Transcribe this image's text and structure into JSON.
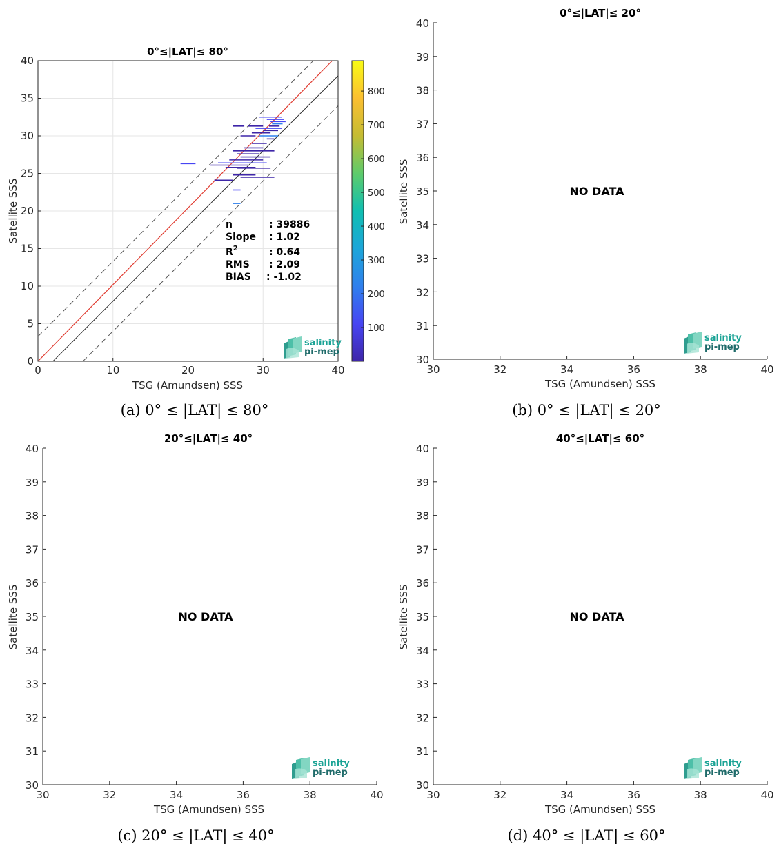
{
  "panels": [
    {
      "id": "a",
      "title": "0°≤|LAT|≤ 80°",
      "caption": "(a) 0° ≤ |LAT| ≤ 80°",
      "xlabel": "TSG (Amundsen) SSS",
      "ylabel": "Satellite SSS",
      "has_data": true
    },
    {
      "id": "b",
      "title": "0°≤|LAT|≤ 20°",
      "caption": "(b) 0° ≤ |LAT| ≤ 20°",
      "xlabel": "TSG (Amundsen) SSS",
      "ylabel": "Satellite SSS",
      "has_data": false,
      "message": "NO DATA"
    },
    {
      "id": "c",
      "title": "20°≤|LAT|≤ 40°",
      "caption": "(c) 20° ≤ |LAT| ≤ 40°",
      "xlabel": "TSG (Amundsen) SSS",
      "ylabel": "Satellite SSS",
      "has_data": false,
      "message": "NO DATA"
    },
    {
      "id": "d",
      "title": "40°≤|LAT|≤ 60°",
      "caption": "(d) 40° ≤ |LAT| ≤ 60°",
      "xlabel": "TSG (Amundsen) SSS",
      "ylabel": "Satellite SSS",
      "has_data": false,
      "message": "NO DATA"
    }
  ],
  "stats": {
    "n_label": "n",
    "n_value": ": 39886",
    "slope_label": "Slope",
    "slope_value": ": 1.02",
    "r2_label": "R",
    "r2_sup": "2",
    "r2_value": ": 0.64",
    "rms_label": "RMS",
    "rms_value": ": 2.09",
    "bias_label": "BIAS",
    "bias_value": ": -1.02"
  },
  "logo": {
    "line1": "salinity",
    "line2": "pi-mep"
  },
  "colors": {
    "identity_line": "#2b2b2b",
    "fit_line": "#e03c31",
    "dashed_bounds": "#555555",
    "grid": "#e6e6e6",
    "logo_teal": "#1aa395",
    "colormap": [
      "#3e26a8",
      "#4745f3",
      "#2f80ed",
      "#1ca6d9",
      "#10bfb1",
      "#5ecb6b",
      "#c5bc33",
      "#fbbf31",
      "#f9fb15"
    ]
  },
  "chart_data": [
    {
      "panel": "a",
      "type": "scatter",
      "title": "0°≤|LAT|≤ 80°",
      "xlabel": "TSG (Amundsen) SSS",
      "ylabel": "Satellite SSS",
      "xlim": [
        0,
        40
      ],
      "ylim": [
        0,
        40
      ],
      "xticks": [
        0,
        10,
        20,
        30,
        40
      ],
      "yticks": [
        0,
        5,
        10,
        15,
        20,
        25,
        30,
        35,
        40
      ],
      "grid": true,
      "reference_lines": {
        "identity": {
          "slope": 1,
          "intercept": 0
        },
        "fit": {
          "slope": 1.02,
          "intercept": 0.45
        },
        "bounds": {
          "offset": 3.3,
          "slope": 1
        }
      },
      "colorbar": {
        "ticks": [
          100,
          200,
          300,
          400,
          500,
          600,
          700,
          800
        ],
        "range": [
          0,
          890
        ]
      },
      "segments": [
        {
          "x1": 29.5,
          "x2": 32.5,
          "y": 32.5,
          "c": 200
        },
        {
          "x1": 30.5,
          "x2": 32.8,
          "y": 32.2,
          "c": 150
        },
        {
          "x1": 31.0,
          "x2": 33.0,
          "y": 31.9,
          "c": 120
        },
        {
          "x1": 31.2,
          "x2": 32.6,
          "y": 31.6,
          "c": 300
        },
        {
          "x1": 30.8,
          "x2": 32.2,
          "y": 31.3,
          "c": 90
        },
        {
          "x1": 26.0,
          "x2": 27.5,
          "y": 31.3,
          "c": 60
        },
        {
          "x1": 28.0,
          "x2": 30.0,
          "y": 31.3,
          "c": 40
        },
        {
          "x1": 29.0,
          "x2": 32.5,
          "y": 31.0,
          "c": 180
        },
        {
          "x1": 30.0,
          "x2": 32.0,
          "y": 30.7,
          "c": 70
        },
        {
          "x1": 28.5,
          "x2": 31.0,
          "y": 30.4,
          "c": 50
        },
        {
          "x1": 27.0,
          "x2": 29.0,
          "y": 30.0,
          "c": 30
        },
        {
          "x1": 29.5,
          "x2": 32.0,
          "y": 30.0,
          "c": 260
        },
        {
          "x1": 30.5,
          "x2": 31.5,
          "y": 29.6,
          "c": 40
        },
        {
          "x1": 28.5,
          "x2": 30.5,
          "y": 29.0,
          "c": 30
        },
        {
          "x1": 27.5,
          "x2": 30.0,
          "y": 28.4,
          "c": 40
        },
        {
          "x1": 26.0,
          "x2": 31.5,
          "y": 28.0,
          "c": 60
        },
        {
          "x1": 26.5,
          "x2": 29.5,
          "y": 27.6,
          "c": 50
        },
        {
          "x1": 27.0,
          "x2": 31.0,
          "y": 27.2,
          "c": 80
        },
        {
          "x1": 25.5,
          "x2": 30.0,
          "y": 26.8,
          "c": 70
        },
        {
          "x1": 24.0,
          "x2": 30.5,
          "y": 26.4,
          "c": 120
        },
        {
          "x1": 23.0,
          "x2": 28.0,
          "y": 26.1,
          "c": 90
        },
        {
          "x1": 19.0,
          "x2": 21.0,
          "y": 26.3,
          "c": 150
        },
        {
          "x1": 25.0,
          "x2": 29.0,
          "y": 25.8,
          "c": 60
        },
        {
          "x1": 26.5,
          "x2": 31.0,
          "y": 25.7,
          "c": 110
        },
        {
          "x1": 26.0,
          "x2": 29.0,
          "y": 24.8,
          "c": 40
        },
        {
          "x1": 27.0,
          "x2": 31.5,
          "y": 24.5,
          "c": 70
        },
        {
          "x1": 23.5,
          "x2": 26.0,
          "y": 24.1,
          "c": 60
        },
        {
          "x1": 26.0,
          "x2": 27.0,
          "y": 22.8,
          "c": 200
        },
        {
          "x1": 26.0,
          "x2": 27.0,
          "y": 21.0,
          "c": 250
        }
      ]
    },
    {
      "panel": "b",
      "type": "scatter",
      "title": "0°≤|LAT|≤ 20°",
      "xlabel": "TSG (Amundsen) SSS",
      "ylabel": "Satellite SSS",
      "xlim": [
        30,
        40
      ],
      "ylim": [
        30,
        40
      ],
      "xticks": [
        30,
        32,
        34,
        36,
        38,
        40
      ],
      "yticks": [
        30,
        31,
        32,
        33,
        34,
        35,
        36,
        37,
        38,
        39,
        40
      ],
      "grid": false,
      "points": []
    },
    {
      "panel": "c",
      "type": "scatter",
      "title": "20°≤|LAT|≤ 40°",
      "xlabel": "TSG (Amundsen) SSS",
      "ylabel": "Satellite SSS",
      "xlim": [
        30,
        40
      ],
      "ylim": [
        30,
        40
      ],
      "xticks": [
        30,
        32,
        34,
        36,
        38,
        40
      ],
      "yticks": [
        30,
        31,
        32,
        33,
        34,
        35,
        36,
        37,
        38,
        39,
        40
      ],
      "grid": false,
      "points": []
    },
    {
      "panel": "d",
      "type": "scatter",
      "title": "40°≤|LAT|≤ 60°",
      "xlabel": "TSG (Amundsen) SSS",
      "ylabel": "Satellite SSS",
      "xlim": [
        30,
        40
      ],
      "ylim": [
        30,
        40
      ],
      "xticks": [
        30,
        32,
        34,
        36,
        38,
        40
      ],
      "yticks": [
        30,
        31,
        32,
        33,
        34,
        35,
        36,
        37,
        38,
        39,
        40
      ],
      "grid": false,
      "points": []
    }
  ]
}
